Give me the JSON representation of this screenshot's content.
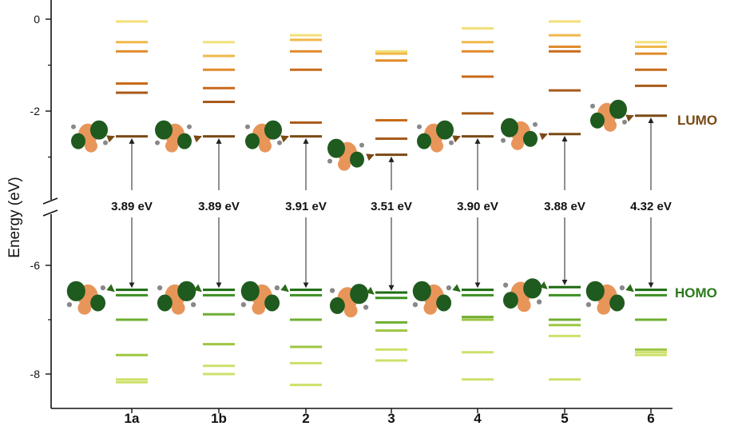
{
  "chart_data": {
    "type": "energy-level-diagram",
    "ylabel": "Energy (eV)",
    "ylim": [
      -8.5,
      0.3
    ],
    "broken_axis": true,
    "categories": [
      "1a",
      "1b",
      "2",
      "3",
      "4",
      "5",
      "6"
    ],
    "yticks": [
      0,
      -2,
      -6,
      -8
    ],
    "ytick_labels": [
      "0",
      "-2",
      "-6",
      "-8"
    ],
    "lumo_label": "LUMO",
    "homo_label": "HOMO",
    "colors": {
      "lumo": "#7a4a14",
      "homo": "#2a7a1a",
      "unocc_shades": [
        "#f2e07a",
        "#f0b84a",
        "#e08a2a",
        "#c86a1a",
        "#a85a1a",
        "#7a4a14"
      ],
      "occ_shades": [
        "#1e6b12",
        "#3d8f22",
        "#6fae32",
        "#9ec642",
        "#cde06a"
      ],
      "lobe_orange": "#e8955a",
      "lobe_green": "#1f5a1f"
    },
    "series": [
      {
        "category": "1a",
        "unoccupied": [
          -0.05,
          -0.5,
          -0.7,
          -1.4,
          -1.6,
          -2.55
        ],
        "occupied": [
          -6.45,
          -6.55,
          -7.0,
          -7.65,
          -8.1,
          -8.15
        ],
        "gap_label": "3.89 eV"
      },
      {
        "category": "1b",
        "unoccupied": [
          -0.5,
          -0.8,
          -1.1,
          -1.5,
          -1.8,
          -2.55
        ],
        "occupied": [
          -6.45,
          -6.55,
          -6.9,
          -7.45,
          -7.85,
          -8.0
        ],
        "gap_label": "3.89 eV"
      },
      {
        "category": "2",
        "unoccupied": [
          -0.35,
          -0.45,
          -0.7,
          -1.1,
          -2.25,
          -2.55
        ],
        "occupied": [
          -6.45,
          -6.55,
          -7.0,
          -7.5,
          -7.8,
          -8.2
        ],
        "gap_label": "3.91 eV"
      },
      {
        "category": "3",
        "unoccupied": [
          -0.7,
          -0.75,
          -0.9,
          -2.2,
          -2.6,
          -2.95
        ],
        "occupied": [
          -6.5,
          -6.6,
          -7.05,
          -7.2,
          -7.55,
          -7.75
        ],
        "gap_label": "3.51 eV"
      },
      {
        "category": "4",
        "unoccupied": [
          -0.2,
          -0.5,
          -0.7,
          -1.25,
          -2.05,
          -2.55
        ],
        "occupied": [
          -6.45,
          -6.55,
          -6.95,
          -7.0,
          -7.6,
          -8.1
        ],
        "gap_label": "3.90 eV"
      },
      {
        "category": "5",
        "unoccupied": [
          -0.05,
          -0.35,
          -0.6,
          -0.7,
          -1.55,
          -2.5
        ],
        "occupied": [
          -6.4,
          -6.55,
          -7.0,
          -7.1,
          -7.3,
          -8.1
        ],
        "gap_label": "3.88 eV"
      },
      {
        "category": "6",
        "unoccupied": [
          -0.5,
          -0.6,
          -0.75,
          -1.1,
          -1.45,
          -2.1
        ],
        "occupied": [
          -6.45,
          -6.55,
          -7.0,
          -7.55,
          -7.6,
          -7.65
        ],
        "gap_label": "4.32 eV"
      }
    ]
  }
}
